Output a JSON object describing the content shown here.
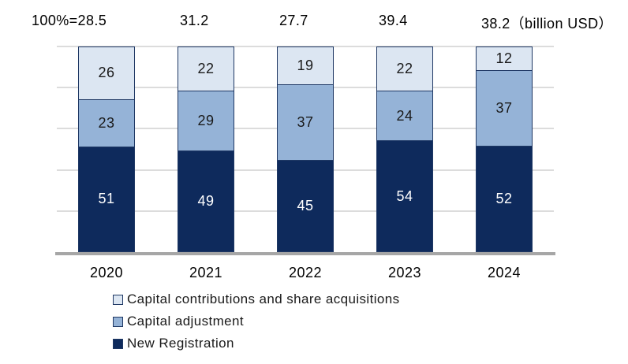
{
  "chart_data": {
    "type": "bar",
    "variant": "100-percent-stacked-column",
    "title": "",
    "categories": [
      "2020",
      "2021",
      "2022",
      "2023",
      "2024"
    ],
    "series": [
      {
        "name": "New Registration",
        "values": [
          51,
          49,
          45,
          54,
          52
        ],
        "color": "#0E2A5C",
        "label_color": "#FFFFFF"
      },
      {
        "name": "Capital adjustment",
        "values": [
          23,
          29,
          37,
          24,
          37
        ],
        "color": "#95B3D7",
        "label_color": "#1A1A1A"
      },
      {
        "name": "Capital contributions and share acquisitions",
        "values": [
          26,
          22,
          19,
          22,
          12
        ],
        "color": "#DCE6F2",
        "label_color": "#1A1A1A"
      }
    ],
    "totals_label_row": [
      "100%=28.5",
      "31.2",
      "27.7",
      "39.4",
      "38.2（billion USD）"
    ],
    "totals_billion_usd": [
      28.5,
      31.2,
      27.7,
      39.4,
      38.2
    ],
    "unit": "billion USD",
    "ylim": [
      0,
      100
    ],
    "gridlines_percent": [
      20,
      40,
      60,
      80,
      100
    ],
    "grid": true,
    "legend_position": "bottom-left",
    "legend": [
      "Capital contributions and share acquisitions",
      "Capital adjustment",
      "New Registration"
    ]
  },
  "colors": {
    "segment_light": "#DCE6F2",
    "segment_medium": "#95B3D7",
    "segment_dark": "#0E2A5C",
    "segment_border": "#1F3864",
    "gridline": "#DCDCDC",
    "axis_line": "#A6A6A6",
    "text": "#000000"
  }
}
